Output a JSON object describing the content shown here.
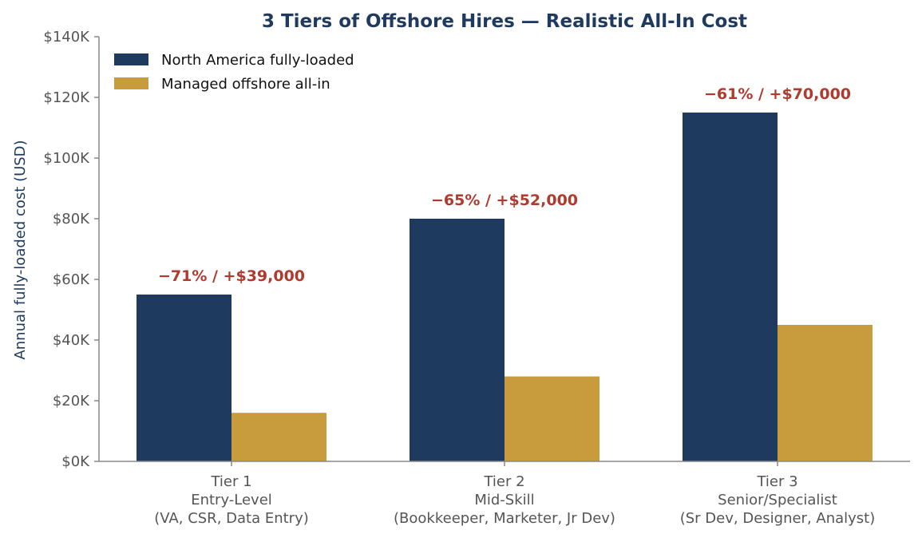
{
  "chart_data": {
    "type": "bar",
    "title": "3 Tiers of Offshore Hires — Realistic All-In Cost",
    "ylabel": "Annual fully-loaded cost (USD)",
    "xlabel": "",
    "ylim": [
      0,
      140000
    ],
    "yticks": [
      0,
      20000,
      40000,
      60000,
      80000,
      100000,
      120000,
      140000
    ],
    "ytick_labels": [
      "$0K",
      "$20K",
      "$40K",
      "$60K",
      "$80K",
      "$100K",
      "$120K",
      "$140K"
    ],
    "categories": [
      [
        "Tier 1",
        "Entry-Level",
        "(VA, CSR, Data Entry)"
      ],
      [
        "Tier 2",
        "Mid-Skill",
        "(Bookkeeper, Marketer, Jr Dev)"
      ],
      [
        "Tier 3",
        "Senior/Specialist",
        "(Sr Dev, Designer, Analyst)"
      ]
    ],
    "series": [
      {
        "name": "North America fully-loaded",
        "values": [
          55000,
          80000,
          115000
        ],
        "color": "#1f3a5f"
      },
      {
        "name": "Managed offshore all-in",
        "values": [
          16000,
          28000,
          45000
        ],
        "color": "#c89b3c"
      }
    ],
    "annotations": [
      "−71% / +$39,000",
      "−65% / +$52,000",
      "−61% / +$70,000"
    ],
    "legend_position": "top-left",
    "grid": false
  },
  "colors": {
    "title": "#1f3a5f",
    "ylabel": "#1f3a5f",
    "annotation": "#b03a2e",
    "axis": "#888888"
  }
}
